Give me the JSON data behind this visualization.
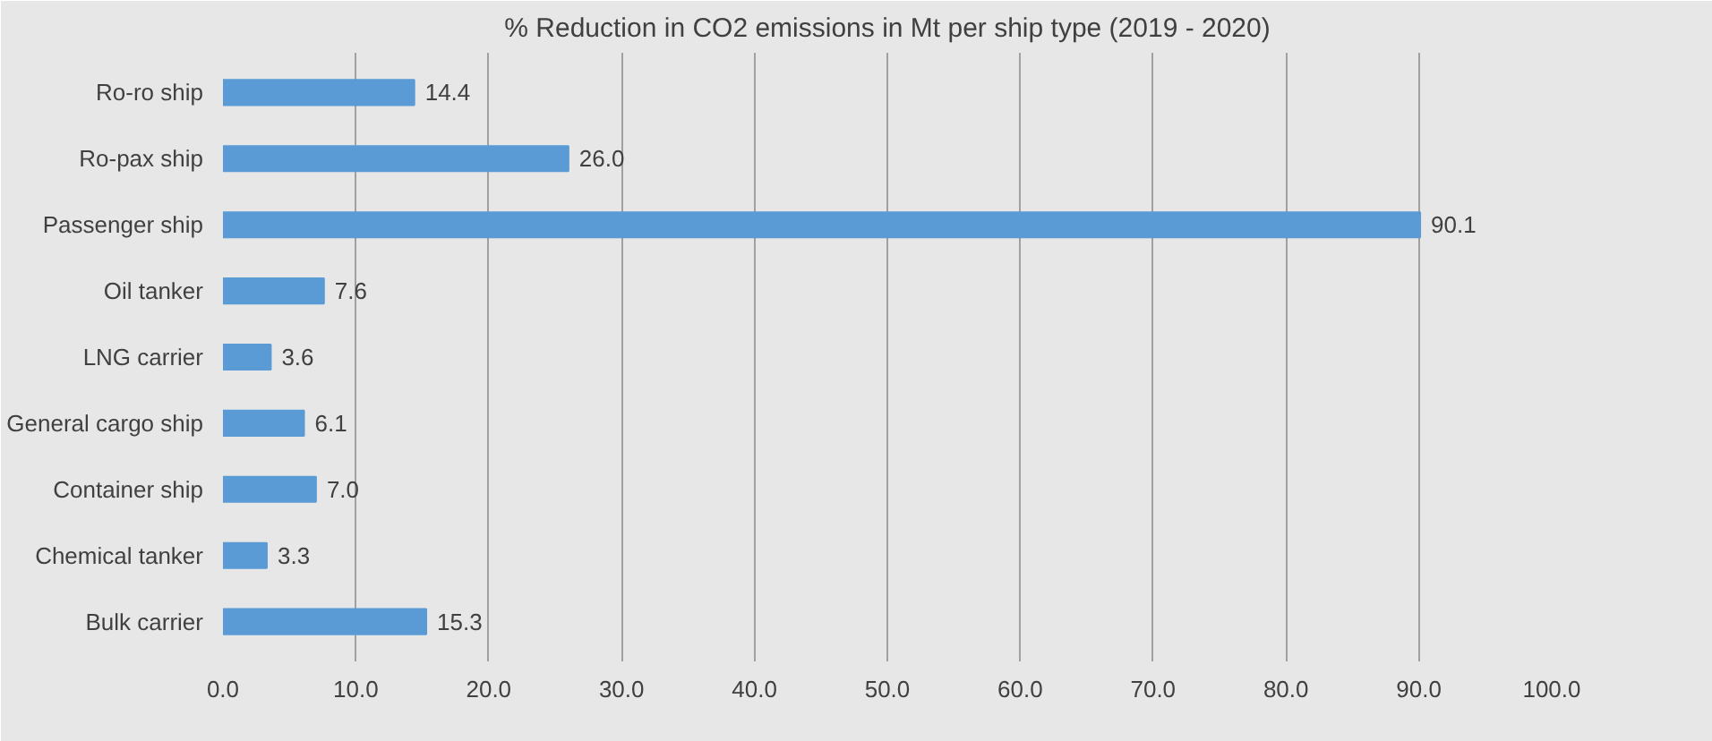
{
  "chart_data": {
    "type": "bar",
    "orientation": "horizontal",
    "title": "% Reduction in CO2 emissions in Mt per ship type (2019 - 2020)",
    "categories": [
      "Ro-ro ship",
      "Ro-pax ship",
      "Passenger ship",
      "Oil tanker",
      "LNG carrier",
      "General cargo ship",
      "Container ship",
      "Chemical tanker",
      "Bulk carrier"
    ],
    "values": [
      14.4,
      26.0,
      90.1,
      7.6,
      3.6,
      6.1,
      7.0,
      3.3,
      15.3
    ],
    "value_labels": [
      "14.4",
      "26.0",
      "90.1",
      "7.6",
      "3.6",
      "6.1",
      "7.0",
      "3.3",
      "15.3"
    ],
    "color": "#5b9bd5",
    "xlim": [
      0,
      100
    ],
    "xticks": [
      {
        "value": 0,
        "label": "0.0"
      },
      {
        "value": 10,
        "label": "10.0"
      },
      {
        "value": 20,
        "label": "20.0"
      },
      {
        "value": 30,
        "label": "30.0"
      },
      {
        "value": 40,
        "label": "40.0"
      },
      {
        "value": 50,
        "label": "50.0"
      },
      {
        "value": 60,
        "label": "60.0"
      },
      {
        "value": 70,
        "label": "70.0"
      },
      {
        "value": 80,
        "label": "80.0"
      },
      {
        "value": 90,
        "label": "90.0"
      },
      {
        "value": 100,
        "label": "100.0"
      }
    ],
    "grid": "x"
  }
}
